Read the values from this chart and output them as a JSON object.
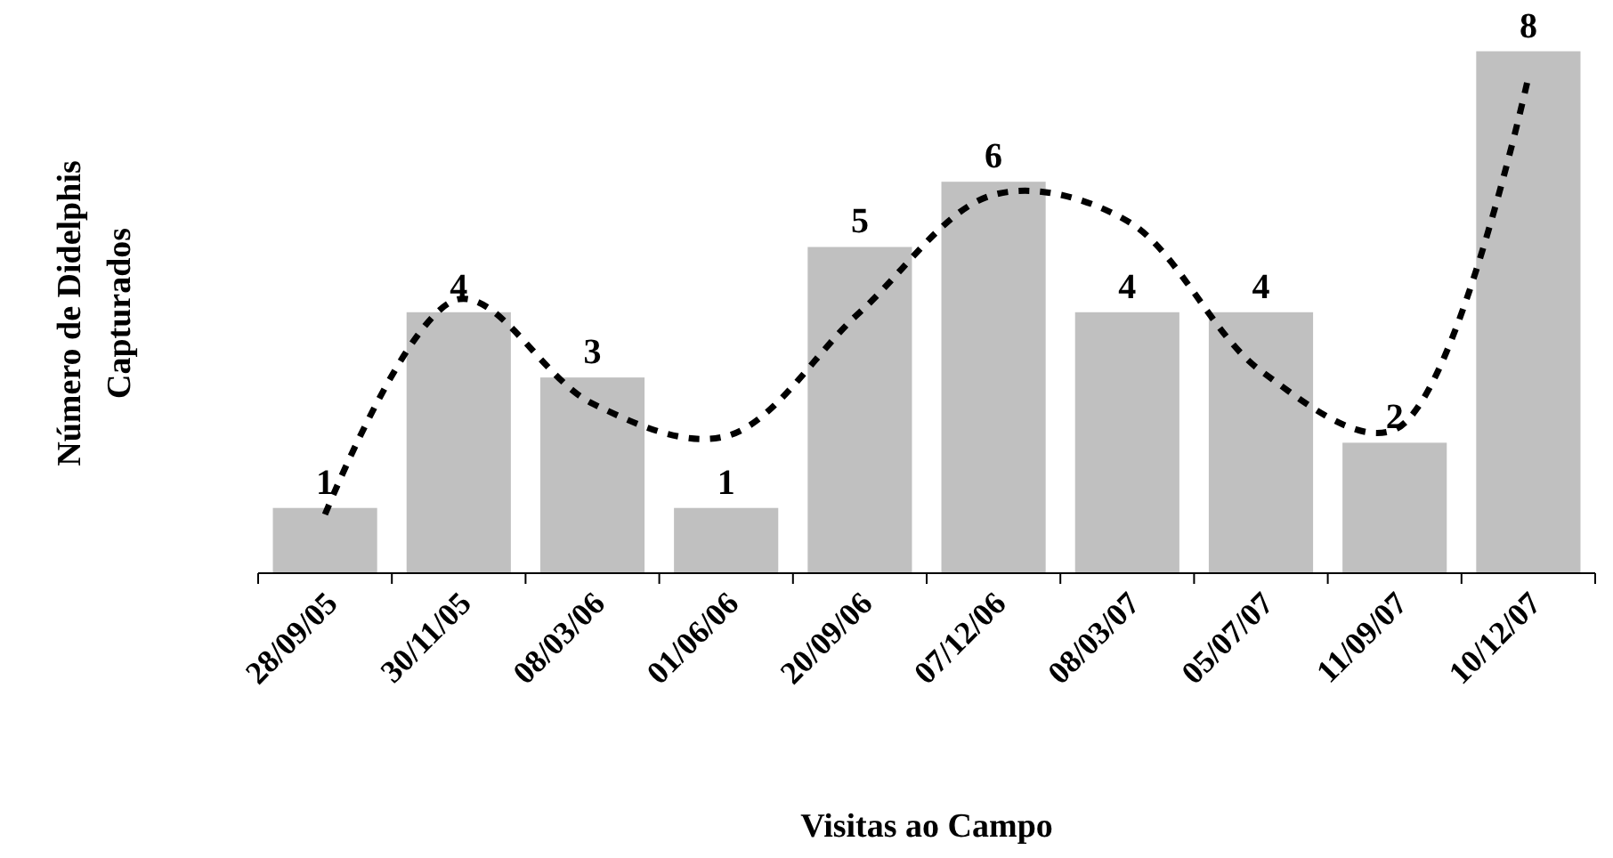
{
  "chart_data": {
    "type": "bar",
    "xlabel": "Visitas ao Campo",
    "ylabel": "Número de Didelphis Capturados",
    "categories": [
      "28/09/05",
      "30/11/05",
      "08/03/06",
      "01/06/06",
      "20/09/06",
      "07/12/06",
      "08/03/07",
      "05/07/07",
      "11/09/07",
      "10/12/07"
    ],
    "series": [
      {
        "color": "#c0c0c0",
        "values": [
          1,
          4,
          3,
          1,
          5,
          6,
          4,
          4,
          2,
          8
        ],
        "value_labels": [
          "1",
          "4",
          "3",
          "1",
          "5",
          "6",
          "4",
          "4",
          "2",
          "8"
        ]
      },
      {
        "type": "line",
        "color": "#000000",
        "line_style": "dashed",
        "marker": "none",
        "values": [
          0.9,
          4.2,
          2.6,
          2.1,
          4.0,
          5.8,
          5.4,
          3.1,
          2.2,
          7.6
        ]
      }
    ],
    "grid": false
  }
}
